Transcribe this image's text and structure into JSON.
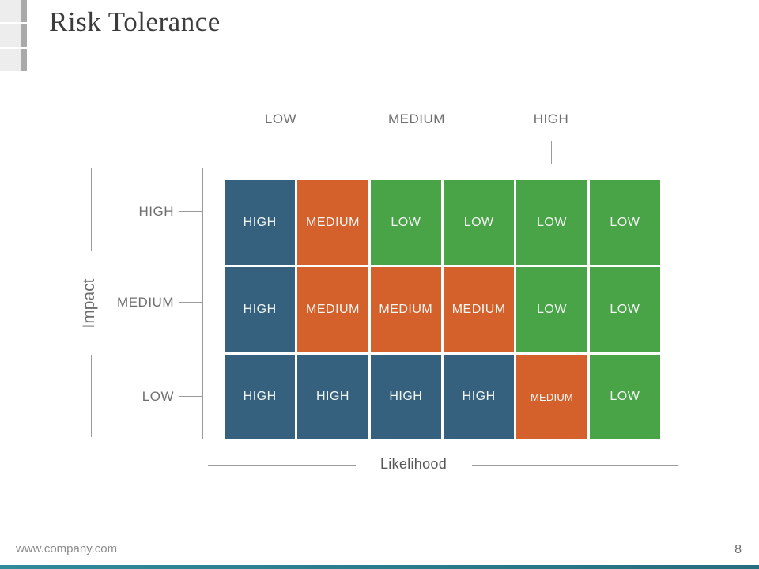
{
  "slide": {
    "title": "Risk Tolerance",
    "footer_url": "www.company.com",
    "page_number": "8"
  },
  "colors": {
    "high": "#36617E",
    "medium": "#D4602B",
    "low": "#49A347",
    "accent_bar_start": "#2F8A9B",
    "accent_bar_end": "#256E7D",
    "axis_line": "#9B9B9B",
    "label_text": "#6E6E6E"
  },
  "chart_data": {
    "type": "heatmap",
    "title": "Risk Tolerance",
    "xlabel": "Likelihood",
    "ylabel": "Impact",
    "x_tick_labels": [
      "LOW",
      "MEDIUM",
      "HIGH"
    ],
    "y_tick_labels": [
      "HIGH",
      "MEDIUM",
      "LOW"
    ],
    "grid_values": [
      [
        "HIGH",
        "MEDIUM",
        "LOW",
        "LOW",
        "LOW",
        "LOW"
      ],
      [
        "HIGH",
        "MEDIUM",
        "MEDIUM",
        "MEDIUM",
        "LOW",
        "LOW"
      ],
      [
        "HIGH",
        "HIGH",
        "HIGH",
        "HIGH",
        "MEDIUM",
        "LOW"
      ]
    ],
    "value_colors": {
      "HIGH": "#36617E",
      "MEDIUM": "#D4602B",
      "LOW": "#49A347"
    },
    "layout": {
      "columns": 6,
      "rows": 3,
      "x_ticks_span_two_columns": true,
      "legend": "none",
      "grid_gap_color": "#FFFFFF"
    },
    "small_text_cells": [
      {
        "row": 2,
        "col": 4
      }
    ]
  }
}
